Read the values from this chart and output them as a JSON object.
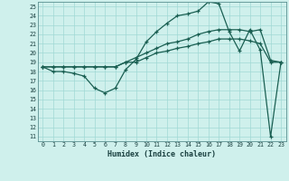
{
  "title": "",
  "xlabel": "Humidex (Indice chaleur)",
  "bg_color": "#cff0ec",
  "grid_color": "#a0d8d4",
  "line_color": "#1a5f52",
  "xlim": [
    -0.5,
    23.5
  ],
  "ylim": [
    10.5,
    25.5
  ],
  "xticks": [
    0,
    1,
    2,
    3,
    4,
    5,
    6,
    7,
    8,
    9,
    10,
    11,
    12,
    13,
    14,
    15,
    16,
    17,
    18,
    19,
    20,
    21,
    22,
    23
  ],
  "yticks": [
    11,
    12,
    13,
    14,
    15,
    16,
    17,
    18,
    19,
    20,
    21,
    22,
    23,
    24,
    25
  ],
  "line1": [
    18.5,
    18.0,
    18.0,
    17.8,
    17.5,
    16.2,
    15.7,
    16.2,
    18.2,
    19.3,
    21.2,
    22.3,
    23.2,
    24.0,
    24.2,
    24.5,
    25.5,
    25.3,
    22.3,
    20.2,
    22.5,
    20.3,
    11.0,
    19.0
  ],
  "line2": [
    18.5,
    18.5,
    18.5,
    18.5,
    18.5,
    18.5,
    18.5,
    18.5,
    19.0,
    19.5,
    20.0,
    20.5,
    21.0,
    21.2,
    21.5,
    22.0,
    22.3,
    22.5,
    22.5,
    22.5,
    22.3,
    22.5,
    19.2,
    19.0
  ],
  "line3": [
    18.5,
    18.5,
    18.5,
    18.5,
    18.5,
    18.5,
    18.5,
    18.5,
    19.0,
    19.0,
    19.5,
    20.0,
    20.2,
    20.5,
    20.7,
    21.0,
    21.2,
    21.5,
    21.5,
    21.5,
    21.3,
    21.0,
    19.0,
    19.0
  ]
}
